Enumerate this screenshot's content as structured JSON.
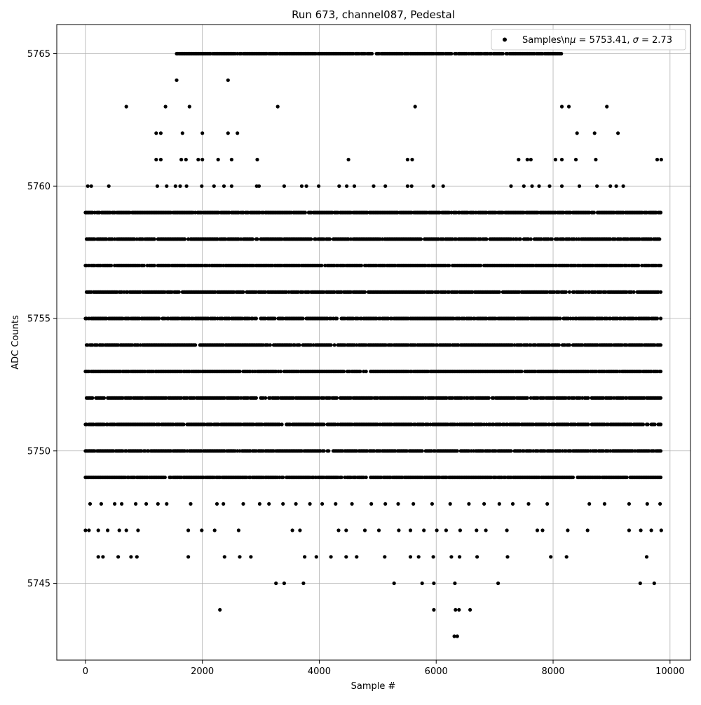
{
  "chart_data": {
    "type": "scatter",
    "title": "Run 673, channel087, Pedestal",
    "xlabel": "Sample #",
    "ylabel": "ADC Counts",
    "xlim": [
      -490,
      10350
    ],
    "ylim": [
      5742.1,
      5766.1
    ],
    "x_ticks": [
      0,
      2000,
      4000,
      6000,
      8000,
      10000
    ],
    "x_tick_labels": [
      "0",
      "2000",
      "4000",
      "6000",
      "8000",
      "10000"
    ],
    "y_ticks": [
      5745,
      5750,
      5755,
      5760,
      5765
    ],
    "y_tick_labels": [
      "5745",
      "5750",
      "5755",
      "5760",
      "5765"
    ],
    "grid": true,
    "legend_position": "upper-right",
    "legend": {
      "label_prefix": "Samples\\n",
      "mu_symbol": "μ",
      "mu_text": " = 5753.41, ",
      "sigma_symbol": "σ",
      "sigma_text": " = 2.73"
    },
    "marker_color": "#000000",
    "series": [
      {
        "name": "Samples",
        "x_range": [
          0,
          9850
        ],
        "rows": [
          {
            "y": 5743,
            "x": [
              6310,
              6360
            ]
          },
          {
            "y": 5744,
            "x": [
              2300,
              5960,
              6330,
              6390,
              6580
            ]
          },
          {
            "y": 5745,
            "x": [
              3260,
              3400,
              3730,
              5280,
              5760,
              5960,
              6320,
              7060,
              9490,
              9730
            ]
          },
          {
            "y": 5746,
            "x": [
              220,
              300,
              560,
              780,
              880,
              1760,
              2380,
              2640,
              2830,
              3750,
              3950,
              4200,
              4460,
              4640,
              5120,
              5560,
              5700,
              5950,
              6260,
              6400,
              6700,
              7220,
              7960,
              8230,
              9600
            ]
          },
          {
            "y": 5747,
            "x": [
              0,
              60,
              220,
              380,
              580,
              700,
              900,
              1760,
              1990,
              2210,
              2620,
              3540,
              3670,
              4330,
              4460,
              4780,
              5020,
              5360,
              5560,
              5790,
              6010,
              6170,
              6410,
              6690,
              6850,
              7210,
              7730,
              7820,
              8250,
              8590,
              9300,
              9500,
              9680,
              9850
            ]
          },
          {
            "y": 5748,
            "x": [
              80,
              270,
              500,
              620,
              860,
              1040,
              1240,
              1390,
              1800,
              2250,
              2360,
              2700,
              2980,
              3140,
              3380,
              3600,
              3840,
              4050,
              4280,
              4560,
              4890,
              5130,
              5350,
              5610,
              5930,
              6240,
              6560,
              6820,
              7080,
              7310,
              7580,
              7900,
              8620,
              8880,
              9300,
              9610,
              9830
            ]
          },
          {
            "y": 5749,
            "x": [
              0,
              9850
            ]
          },
          {
            "y": 5750,
            "x": [
              0,
              9850
            ]
          },
          {
            "y": 5751,
            "x": [
              0,
              9850
            ]
          },
          {
            "y": 5752,
            "x": [
              0,
              9850
            ]
          },
          {
            "y": 5753,
            "x": [
              0,
              9850
            ]
          },
          {
            "y": 5754,
            "x": [
              0,
              9850
            ]
          },
          {
            "y": 5755,
            "x": [
              0,
              9850
            ]
          },
          {
            "y": 5756,
            "x": [
              0,
              9850
            ]
          },
          {
            "y": 5757,
            "x": [
              0,
              9850
            ]
          },
          {
            "y": 5758,
            "x": [
              0,
              9850
            ]
          },
          {
            "y": 5759,
            "x": [
              0,
              9850
            ]
          },
          {
            "y": 5760,
            "x": [
              40,
              100,
              400,
              1230,
              1390,
              1540,
              1620,
              1730,
              1990,
              2200,
              2370,
              2500,
              2930,
              2970,
              3400,
              3700,
              3780,
              3990,
              4340,
              4470,
              4600,
              4930,
              5130,
              5510,
              5580,
              5950,
              6120,
              7280,
              7500,
              7640,
              7760,
              7940,
              8150,
              8450,
              8750,
              8980,
              9080,
              9200
            ]
          },
          {
            "y": 5761,
            "x": [
              1210,
              1290,
              1640,
              1720,
              1930,
              2000,
              2270,
              2500,
              2940,
              4500,
              5510,
              5590,
              7410,
              7560,
              7620,
              8040,
              8150,
              8390,
              8730,
              9780,
              9850
            ]
          },
          {
            "y": 5762,
            "x": [
              1210,
              1290,
              1660,
              2000,
              2440,
              2600,
              8410,
              8710,
              9110
            ]
          },
          {
            "y": 5763,
            "x": [
              700,
              1370,
              1780,
              3290,
              5640,
              8150,
              8270,
              8920
            ]
          },
          {
            "y": 5764,
            "x": [
              1560,
              2440
            ]
          },
          {
            "y": 5765,
            "x": [
              1560,
              8140
            ]
          }
        ]
      }
    ]
  }
}
